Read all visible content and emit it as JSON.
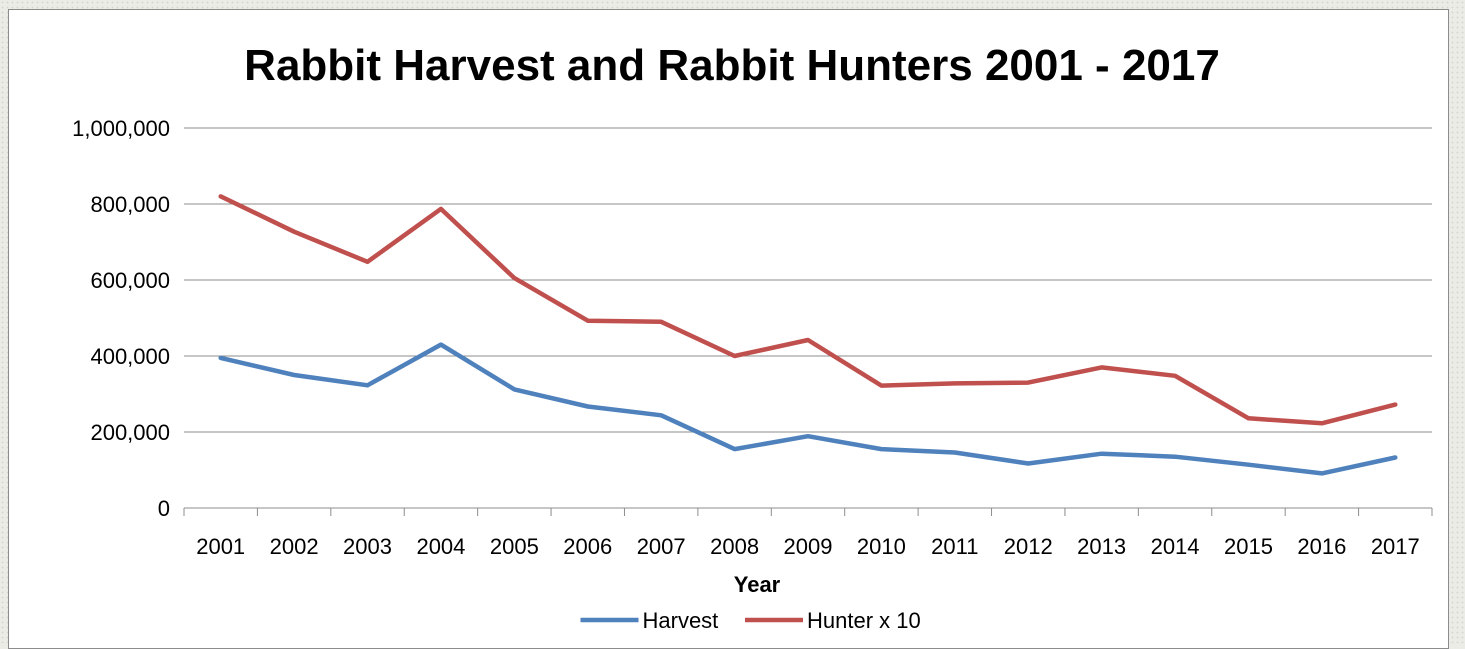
{
  "chart_data": {
    "type": "line",
    "title": "Rabbit Harvest and Rabbit Hunters 2001 - 2017",
    "xlabel": "Year",
    "ylabel": "",
    "categories": [
      "2001",
      "2002",
      "2003",
      "2004",
      "2005",
      "2006",
      "2007",
      "2008",
      "2009",
      "2010",
      "2011",
      "2012",
      "2013",
      "2014",
      "2015",
      "2016",
      "2017"
    ],
    "ylim": [
      0,
      1000000
    ],
    "yticks": [
      0,
      200000,
      400000,
      600000,
      800000,
      1000000
    ],
    "ytick_labels": [
      "0",
      "200,000",
      "400,000",
      "600,000",
      "800,000",
      "1,000,000"
    ],
    "grid": true,
    "legend_position": "bottom",
    "series": [
      {
        "name": "Harvest",
        "color": "#4f81bd",
        "values": [
          395000,
          350000,
          323000,
          430000,
          312000,
          267000,
          244000,
          155000,
          189000,
          155000,
          146000,
          117000,
          143000,
          135000,
          114000,
          91000,
          133000
        ]
      },
      {
        "name": "Hunter x 10",
        "color": "#c0504d",
        "values": [
          820000,
          727000,
          648000,
          787000,
          605000,
          493000,
          490000,
          400000,
          442000,
          322000,
          328000,
          330000,
          370000,
          348000,
          236000,
          223000,
          272000
        ]
      }
    ]
  }
}
